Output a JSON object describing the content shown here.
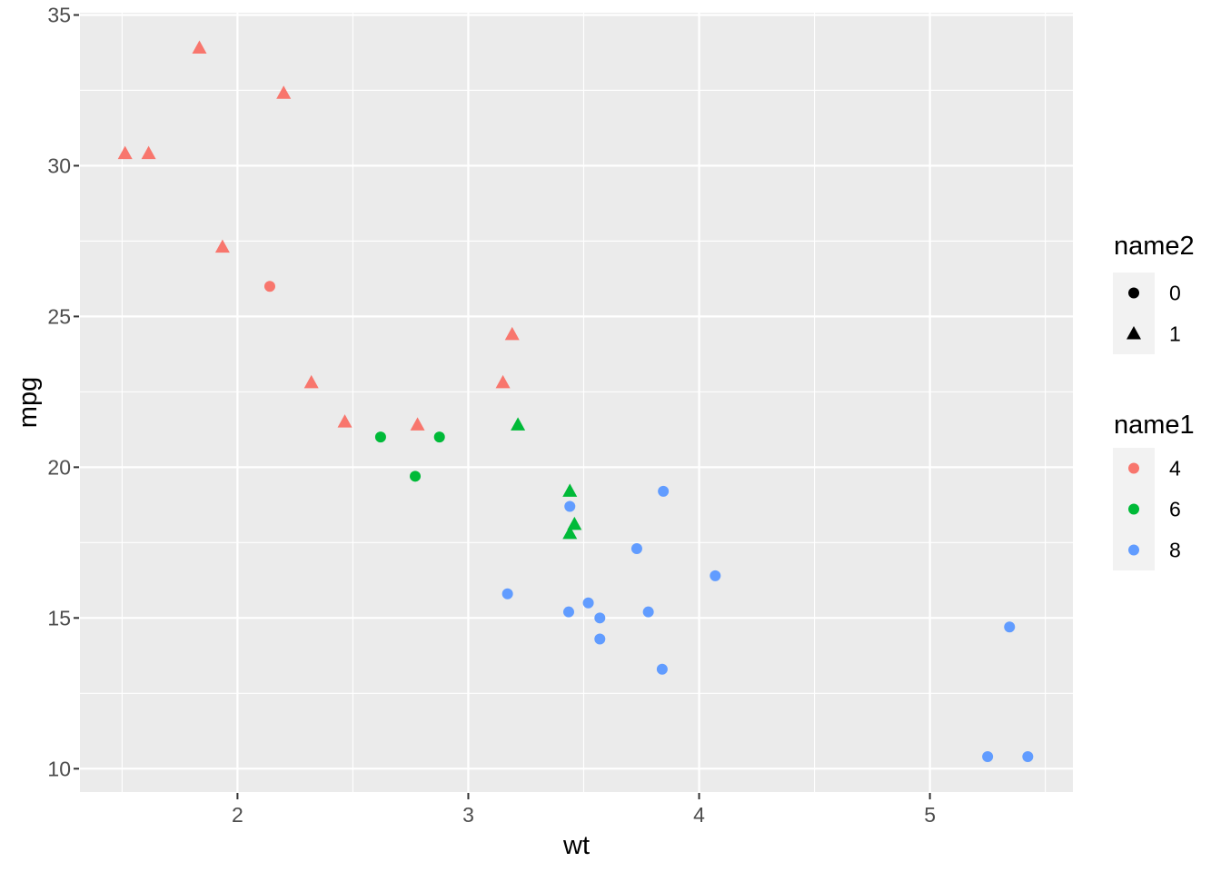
{
  "chart_data": {
    "type": "scatter",
    "title": "",
    "xlabel": "wt",
    "ylabel": "mpg",
    "xlim": [
      1.31745,
      5.61955
    ],
    "ylim": [
      9.225,
      35.075
    ],
    "x_ticks": [
      2,
      3,
      4,
      5
    ],
    "y_ticks": [
      10,
      15,
      20,
      25,
      30,
      35
    ],
    "x_minor_ticks": [
      1.5,
      2.5,
      3.5,
      4.5,
      5.5
    ],
    "y_minor_ticks": [
      12.5,
      17.5,
      22.5,
      27.5,
      32.5
    ],
    "grid": true,
    "legend_position": "right",
    "theme": {
      "page_bg": "#FFFFFF",
      "panel_bg": "#EBEBEB",
      "grid_color": "#FFFFFF",
      "tick_label_color": "#4D4D4D",
      "tick_mark_color": "#333333",
      "axis_title_color": "#000000",
      "legend_key_bg": "#F2F2F2"
    },
    "legends": [
      {
        "title": "name2",
        "entries": [
          {
            "label": "0",
            "shape": "circle",
            "color": "#000000"
          },
          {
            "label": "1",
            "shape": "triangle",
            "color": "#000000"
          }
        ]
      },
      {
        "title": "name1",
        "entries": [
          {
            "label": "4",
            "shape": "circle",
            "color": "#F8766D"
          },
          {
            "label": "6",
            "shape": "circle",
            "color": "#00BA38"
          },
          {
            "label": "8",
            "shape": "circle",
            "color": "#619CFF"
          }
        ]
      }
    ],
    "series": [
      {
        "name": "4",
        "color": "#F8766D",
        "points": [
          {
            "x": 2.32,
            "y": 22.8,
            "shape": "triangle"
          },
          {
            "x": 3.19,
            "y": 24.4,
            "shape": "triangle"
          },
          {
            "x": 3.15,
            "y": 22.8,
            "shape": "triangle"
          },
          {
            "x": 2.2,
            "y": 32.4,
            "shape": "triangle"
          },
          {
            "x": 1.615,
            "y": 30.4,
            "shape": "triangle"
          },
          {
            "x": 1.835,
            "y": 33.9,
            "shape": "triangle"
          },
          {
            "x": 2.465,
            "y": 21.5,
            "shape": "triangle"
          },
          {
            "x": 1.935,
            "y": 27.3,
            "shape": "triangle"
          },
          {
            "x": 2.14,
            "y": 26.0,
            "shape": "circle"
          },
          {
            "x": 1.513,
            "y": 30.4,
            "shape": "triangle"
          },
          {
            "x": 2.78,
            "y": 21.4,
            "shape": "triangle"
          }
        ]
      },
      {
        "name": "6",
        "color": "#00BA38",
        "points": [
          {
            "x": 2.62,
            "y": 21.0,
            "shape": "circle"
          },
          {
            "x": 2.875,
            "y": 21.0,
            "shape": "circle"
          },
          {
            "x": 3.215,
            "y": 21.4,
            "shape": "triangle"
          },
          {
            "x": 3.46,
            "y": 18.1,
            "shape": "triangle"
          },
          {
            "x": 3.44,
            "y": 19.2,
            "shape": "triangle"
          },
          {
            "x": 3.44,
            "y": 17.8,
            "shape": "triangle"
          },
          {
            "x": 2.77,
            "y": 19.7,
            "shape": "circle"
          }
        ]
      },
      {
        "name": "8",
        "color": "#619CFF",
        "points": [
          {
            "x": 3.44,
            "y": 18.7,
            "shape": "circle"
          },
          {
            "x": 3.57,
            "y": 14.3,
            "shape": "circle"
          },
          {
            "x": 4.07,
            "y": 16.4,
            "shape": "circle"
          },
          {
            "x": 3.73,
            "y": 17.3,
            "shape": "circle"
          },
          {
            "x": 3.78,
            "y": 15.2,
            "shape": "circle"
          },
          {
            "x": 5.25,
            "y": 10.4,
            "shape": "circle"
          },
          {
            "x": 5.424,
            "y": 10.4,
            "shape": "circle"
          },
          {
            "x": 5.345,
            "y": 14.7,
            "shape": "circle"
          },
          {
            "x": 3.52,
            "y": 15.5,
            "shape": "circle"
          },
          {
            "x": 3.435,
            "y": 15.2,
            "shape": "circle"
          },
          {
            "x": 3.84,
            "y": 13.3,
            "shape": "circle"
          },
          {
            "x": 3.845,
            "y": 19.2,
            "shape": "circle"
          },
          {
            "x": 3.17,
            "y": 15.8,
            "shape": "circle"
          },
          {
            "x": 3.57,
            "y": 15.0,
            "shape": "circle"
          }
        ]
      }
    ]
  }
}
